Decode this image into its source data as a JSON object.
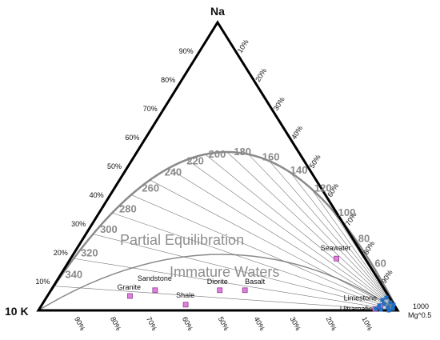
{
  "chart_data": {
    "type": "scatter",
    "title": "",
    "vertices": {
      "top": "Na",
      "left": "10 K",
      "right_line1": "1000",
      "right_line2": "Mg^0.5"
    },
    "left_ticks": [
      "10%",
      "20%",
      "30%",
      "40%",
      "50%",
      "60%",
      "70%",
      "80%",
      "90%"
    ],
    "right_ticks": [
      "10%",
      "20%",
      "30%",
      "40%",
      "50%",
      "60%",
      "70%",
      "80%",
      "90%"
    ],
    "bottom_ticks": [
      "90%",
      "80%",
      "70%",
      "60%",
      "50%",
      "40%",
      "30%",
      "20%",
      "10%"
    ],
    "temperature_labels": [
      "340",
      "320",
      "300",
      "280",
      "260",
      "240",
      "220",
      "200",
      "180",
      "160",
      "140",
      "120",
      "100",
      "80",
      "60"
    ],
    "region_labels": [
      "Partial Equilibration",
      "Immature Waters"
    ],
    "reference_points": [
      {
        "label": "Granite",
        "na": 5,
        "k": 72
      },
      {
        "label": "Sandstone",
        "na": 7,
        "k": 64
      },
      {
        "label": "Shale",
        "na": 2,
        "k": 58
      },
      {
        "label": "Diorite",
        "na": 7,
        "k": 46
      },
      {
        "label": "Basalt",
        "na": 7,
        "k": 39
      },
      {
        "label": "Seawater",
        "na": 18,
        "k": 8
      },
      {
        "label": "Limestone",
        "na": 1.5,
        "k": 4
      },
      {
        "label": "Ultramafic",
        "na": 0.5,
        "k": 6
      }
    ],
    "samples_color": "#1f6fc5",
    "reference_color": "#e07fe0"
  }
}
